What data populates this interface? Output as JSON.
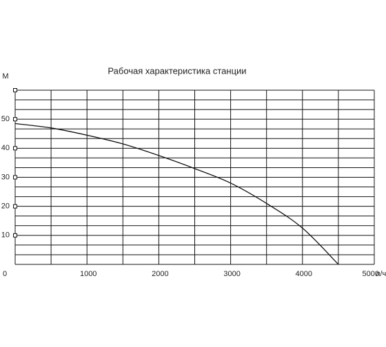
{
  "chart_data": {
    "type": "line",
    "title": "Рабочая характеристика станции",
    "y_label": "М",
    "x_label": "л/ч",
    "x": [
      0,
      500,
      1000,
      1500,
      2000,
      2500,
      3000,
      3500,
      4000,
      4500
    ],
    "series": [
      {
        "color": "#111111",
        "values": [
          48.5,
          47,
          44.5,
          41.5,
          37.5,
          33,
          28,
          21,
          12.5,
          0
        ]
      }
    ],
    "xlim": [
      0,
      5000
    ],
    "xticks": [
      0,
      1000,
      2000,
      3000,
      4000,
      5000
    ],
    "ylim": [
      0,
      60
    ],
    "yticks": [
      10,
      20,
      30,
      40,
      50
    ],
    "grid": true,
    "x_grid_per_tick": 2,
    "y_grid_per_tick": 3
  }
}
